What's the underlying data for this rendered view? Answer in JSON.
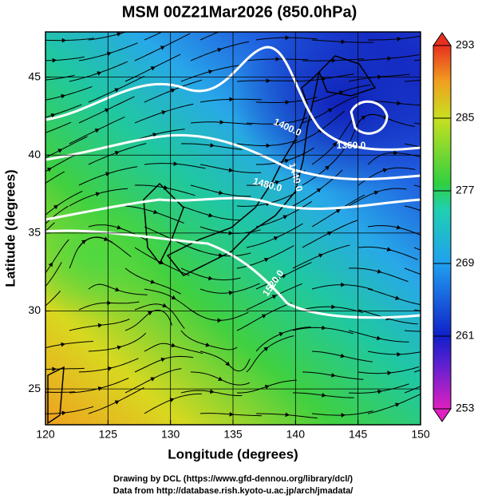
{
  "chart_data": {
    "type": "map",
    "title": "MSM 00Z21Mar2026 (850.0hPa)",
    "x_label": "Longitude (degrees)",
    "y_label": "Latitude  (degrees)",
    "xlim": [
      120,
      150
    ],
    "xticks": [
      120,
      125,
      130,
      135,
      140,
      145,
      150
    ],
    "ylim": [
      22.7,
      47.9
    ],
    "yticks": [
      25,
      30,
      35,
      40,
      45
    ],
    "grid": true,
    "colorbar": {
      "lim": [
        253,
        293
      ],
      "ticks": [
        253,
        261,
        269,
        277,
        285,
        293
      ]
    },
    "contour_labels": [
      "1400.0",
      "1360.0",
      "1440.0",
      "1480.0",
      "1520.0"
    ],
    "footer": [
      "Drawing by DCL (https://www.gfd-dennou.org/library/dcl/)",
      "Data from http://database.rish.kyoto-u.ac.jp/arch/jmadata/"
    ]
  }
}
